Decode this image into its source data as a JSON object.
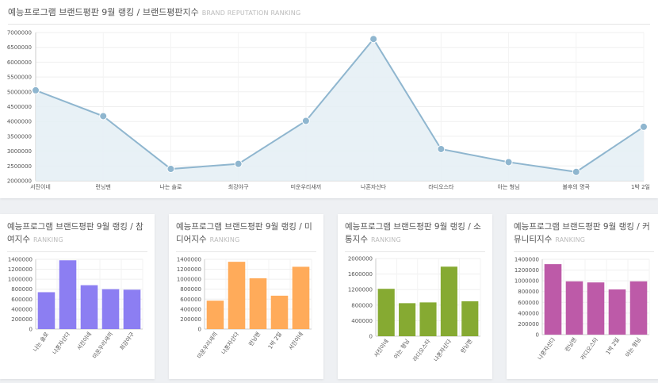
{
  "main": {
    "title": "예능프로그램 브랜드평판 9월 랭킹 / 브랜드평판지수",
    "subtitle": "BRAND REPUTATION RANKING",
    "colors": {
      "line": "#8fb6cf",
      "fill": "#e4eef4",
      "point": "#8fb6cf"
    }
  },
  "small_charts": [
    {
      "title": "예능프로그램 브랜드평판 9월 랭킹 / 참여지수",
      "subtitle": "RANKING",
      "color": "#8c7ef2"
    },
    {
      "title": "예능프로그램 브랜드평판 9월 랭킹 / 미디어지수",
      "subtitle": "RANKING",
      "color": "#ffab5a"
    },
    {
      "title": "예능프로그램 브랜드평판 9월 랭킹 / 소통지수",
      "subtitle": "RANKING",
      "color": "#86aa32"
    },
    {
      "title": "예능프로그램 브랜드평판 9월 랭킹 / 커뮤니티지수",
      "subtitle": "RANKING",
      "color": "#bd5aa8"
    }
  ],
  "chart_data": [
    {
      "type": "area",
      "categories": [
        "서진이네",
        "런닝맨",
        "나는 솔로",
        "최강야구",
        "미운우리새끼",
        "나혼자산다",
        "라디오스타",
        "아는 형님",
        "불후의 명곡",
        "1박 2일"
      ],
      "values": [
        5050000,
        4180000,
        2400000,
        2570000,
        4020000,
        6780000,
        3070000,
        2630000,
        2300000,
        3820000
      ],
      "ylim": [
        2000000,
        7000000
      ],
      "yticks": [
        "2000000",
        "2500000",
        "3000000",
        "3500000",
        "4000000",
        "4500000",
        "5000000",
        "5500000",
        "6000000",
        "6500000",
        "7000000"
      ],
      "grid": true
    },
    {
      "type": "bar",
      "categories": [
        "나는 솔로",
        "나혼자산다",
        "서진이네",
        "미운우리새끼",
        "최강야구"
      ],
      "values": [
        740000,
        1380000,
        880000,
        800000,
        790000
      ],
      "ylim": [
        0,
        1400000
      ],
      "yticks": [
        "0",
        "200000",
        "400000",
        "600000",
        "800000",
        "1000000",
        "1200000",
        "1400000"
      ],
      "grid": true
    },
    {
      "type": "bar",
      "categories": [
        "미운우리새끼",
        "나혼자산다",
        "런닝맨",
        "1박 2일",
        "서진이네"
      ],
      "values": [
        570000,
        1350000,
        1020000,
        670000,
        1250000
      ],
      "ylim": [
        0,
        1400000
      ],
      "yticks": [
        "0",
        "200000",
        "400000",
        "600000",
        "800000",
        "1000000",
        "1200000",
        "1400000"
      ],
      "grid": true
    },
    {
      "type": "bar",
      "categories": [
        "서진이네",
        "아는 형님",
        "라디오스타",
        "나혼자산다",
        "런닝맨"
      ],
      "values": [
        1220000,
        850000,
        870000,
        1790000,
        900000
      ],
      "ylim": [
        0,
        2000000
      ],
      "yticks": [
        "0",
        "400000",
        "800000",
        "1200000",
        "1600000",
        "2000000"
      ],
      "grid": true
    },
    {
      "type": "bar",
      "categories": [
        "나혼자산다",
        "런닝맨",
        "라디오스타",
        "1박 2일",
        "아는 형님"
      ],
      "values": [
        1310000,
        990000,
        970000,
        840000,
        990000
      ],
      "ylim": [
        0,
        1400000
      ],
      "yticks": [
        "0",
        "200000",
        "400000",
        "600000",
        "800000",
        "1000000",
        "1200000",
        "1400000"
      ],
      "grid": true
    }
  ]
}
